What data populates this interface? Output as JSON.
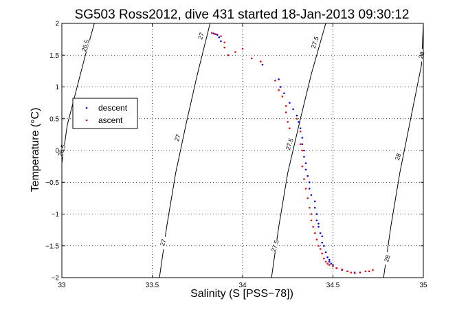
{
  "chart_data": {
    "type": "scatter",
    "title": "SG503 Ross2012, dive 431 started 18-Jan-2013 09:30:12",
    "xlabel": "Salinity (S [PSS−78])",
    "ylabel": "Temperature (°C)",
    "xlim": [
      33,
      35
    ],
    "ylim": [
      -2,
      2
    ],
    "xticks": [
      33,
      33.5,
      34,
      34.5,
      35
    ],
    "xtick_labels": [
      "33",
      "33.5",
      "34",
      "34.5",
      "35"
    ],
    "yticks": [
      -2,
      -1.5,
      -1,
      -0.5,
      0,
      0.5,
      1,
      1.5,
      2
    ],
    "ytick_labels": [
      "−2",
      "−1.5",
      "−1",
      "−0.5",
      "0",
      "0.5",
      "1",
      "1.5",
      "2"
    ],
    "grid": true,
    "legend_position": "left",
    "contours": [
      {
        "level": "26.5",
        "points": [
          [
            32.98,
            -0.2
          ],
          [
            33.03,
            0.4
          ],
          [
            33.08,
            0.95
          ],
          [
            33.13,
            1.5
          ],
          [
            33.18,
            2.0
          ]
        ],
        "labels": [
          {
            "text": "26.5",
            "x": 33.0,
            "y": 0.0
          },
          {
            "text": "26.5",
            "x": 33.13,
            "y": 1.65
          }
        ]
      },
      {
        "level": "27",
        "points": [
          [
            33.54,
            -2.0
          ],
          [
            33.58,
            -1.2
          ],
          [
            33.63,
            -0.35
          ],
          [
            33.69,
            0.45
          ],
          [
            33.75,
            1.2
          ],
          [
            33.82,
            2.0
          ]
        ],
        "labels": [
          {
            "text": "27",
            "x": 33.56,
            "y": -1.45
          },
          {
            "text": "27",
            "x": 33.64,
            "y": 0.2
          },
          {
            "text": "27",
            "x": 33.77,
            "y": 1.8
          }
        ]
      },
      {
        "level": "27.5",
        "points": [
          [
            34.16,
            -2.0
          ],
          [
            34.2,
            -1.2
          ],
          [
            34.25,
            -0.35
          ],
          [
            34.32,
            0.5
          ],
          [
            34.38,
            1.2
          ],
          [
            34.46,
            2.0
          ]
        ],
        "labels": [
          {
            "text": "27.5",
            "x": 34.18,
            "y": -1.5
          },
          {
            "text": "27.5",
            "x": 34.26,
            "y": 0.1
          },
          {
            "text": "27.5",
            "x": 34.4,
            "y": 1.7
          }
        ]
      },
      {
        "level": "28",
        "points": [
          [
            34.78,
            -2.0
          ],
          [
            34.82,
            -1.2
          ],
          [
            34.87,
            -0.35
          ],
          [
            34.93,
            0.5
          ],
          [
            34.99,
            1.35
          ],
          [
            35.02,
            2.0
          ]
        ],
        "labels": [
          {
            "text": "28",
            "x": 34.8,
            "y": -1.7
          },
          {
            "text": "28",
            "x": 34.86,
            "y": -0.1
          },
          {
            "text": "28",
            "x": 34.99,
            "y": 1.5
          }
        ]
      }
    ],
    "series": [
      {
        "name": "descent",
        "color": "#0000ff",
        "x": [
          33.84,
          33.85,
          33.86,
          33.87,
          33.88,
          34.11,
          34.2,
          34.21,
          34.23,
          34.26,
          34.28,
          34.3,
          34.31,
          34.32,
          34.33,
          34.33,
          34.34,
          34.34,
          34.35,
          34.35,
          34.36,
          34.37,
          34.37,
          34.38,
          34.4,
          34.4,
          34.41,
          34.41,
          34.42,
          34.42,
          34.43,
          34.44,
          34.44,
          34.45,
          34.46,
          34.47,
          34.48,
          34.48,
          34.49,
          34.5,
          34.52,
          34.55,
          34.58,
          34.62
        ],
        "y": [
          1.84,
          1.83,
          1.82,
          1.78,
          1.72,
          1.35,
          1.12,
          1.0,
          0.9,
          0.75,
          0.65,
          0.55,
          0.45,
          0.35,
          0.2,
          0.1,
          0.0,
          -0.1,
          -0.2,
          -0.3,
          -0.4,
          -0.5,
          -0.6,
          -0.7,
          -0.8,
          -0.9,
          -1.0,
          -1.1,
          -1.15,
          -1.2,
          -1.3,
          -1.35,
          -1.45,
          -1.5,
          -1.6,
          -1.68,
          -1.72,
          -1.75,
          -1.78,
          -1.8,
          -1.85,
          -1.88,
          -1.9,
          -1.92
        ]
      },
      {
        "name": "ascent",
        "color": "#ff0000",
        "x": [
          33.83,
          33.85,
          33.88,
          33.9,
          33.9,
          33.92,
          33.96,
          34.0,
          34.05,
          34.1,
          34.18,
          34.2,
          34.22,
          34.24,
          34.24,
          34.25,
          34.26,
          34.3,
          34.32,
          34.32,
          34.33,
          34.33,
          34.34,
          34.35,
          34.36,
          34.37,
          34.38,
          34.38,
          34.39,
          34.4,
          34.41,
          34.42,
          34.43,
          34.44,
          34.45,
          34.46,
          34.47,
          34.48,
          34.5,
          34.52,
          34.55,
          34.58,
          34.6,
          34.62,
          34.65,
          34.68,
          34.7,
          34.72
        ],
        "y": [
          1.85,
          1.83,
          1.8,
          1.7,
          1.62,
          1.5,
          1.55,
          1.6,
          1.45,
          1.4,
          1.1,
          0.95,
          0.85,
          0.7,
          0.6,
          0.45,
          0.35,
          0.5,
          0.3,
          0.1,
          0.0,
          -0.25,
          -0.45,
          -0.6,
          -0.75,
          -0.9,
          -1.0,
          -1.1,
          -1.2,
          -1.3,
          -1.4,
          -1.5,
          -1.55,
          -1.62,
          -1.7,
          -1.75,
          -1.78,
          -1.8,
          -1.82,
          -1.85,
          -1.87,
          -1.9,
          -1.92,
          -1.93,
          -1.92,
          -1.9,
          -1.9,
          -1.88
        ]
      }
    ]
  }
}
